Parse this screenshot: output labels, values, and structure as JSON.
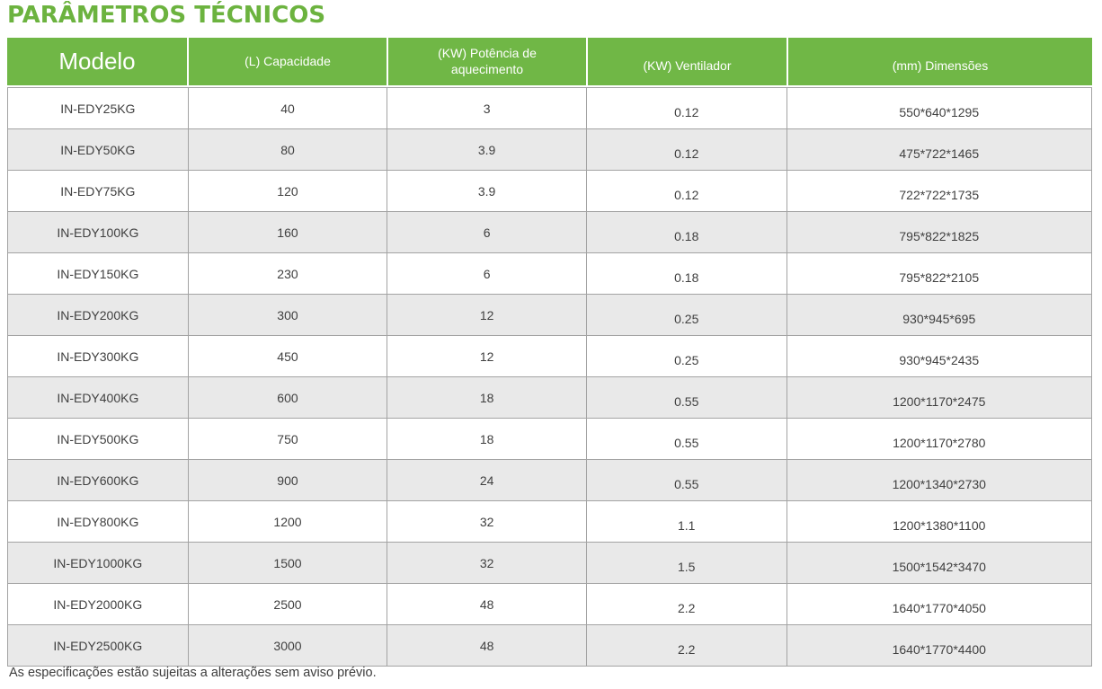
{
  "title": "PARÂMETROS TÉCNICOS",
  "note": "As especificações estão sujeitas a alterações sem aviso prévio.",
  "colors": {
    "accent_green": "#6CB33F",
    "header_bg": "#70B746",
    "header_text": "#FFFFFF",
    "row_alt_bg": "#E9E9E9",
    "grid_border": "#A3A3A3",
    "cell_text": "#404040"
  },
  "table": {
    "columns": [
      {
        "label": "Modelo"
      },
      {
        "label": "(L) Capacidade"
      },
      {
        "label": "(KW) Potência de aquecimento"
      },
      {
        "label": "(KW) Ventilador"
      },
      {
        "label": "(mm) Dimensões"
      }
    ],
    "rows": [
      [
        "IN-EDY25KG",
        "40",
        "3",
        "0.12",
        "550*640*1295"
      ],
      [
        "IN-EDY50KG",
        "80",
        "3.9",
        "0.12",
        "475*722*1465"
      ],
      [
        "IN-EDY75KG",
        "120",
        "3.9",
        "0.12",
        "722*722*1735"
      ],
      [
        "IN-EDY100KG",
        "160",
        "6",
        "0.18",
        "795*822*1825"
      ],
      [
        "IN-EDY150KG",
        "230",
        "6",
        "0.18",
        "795*822*2105"
      ],
      [
        "IN-EDY200KG",
        "300",
        "12",
        "0.25",
        "930*945*695"
      ],
      [
        "IN-EDY300KG",
        "450",
        "12",
        "0.25",
        "930*945*2435"
      ],
      [
        "IN-EDY400KG",
        "600",
        "18",
        "0.55",
        "1200*1170*2475"
      ],
      [
        "IN-EDY500KG",
        "750",
        "18",
        "0.55",
        "1200*1170*2780"
      ],
      [
        "IN-EDY600KG",
        "900",
        "24",
        "0.55",
        "1200*1340*2730"
      ],
      [
        "IN-EDY800KG",
        "1200",
        "32",
        "1.1",
        "1200*1380*1100"
      ],
      [
        "IN-EDY1000KG",
        "1500",
        "32",
        "1.5",
        "1500*1542*3470"
      ],
      [
        "IN-EDY2000KG",
        "2500",
        "48",
        "2.2",
        "1640*1770*4050"
      ],
      [
        "IN-EDY2500KG",
        "3000",
        "48",
        "2.2",
        "1640*1770*4400"
      ]
    ]
  }
}
